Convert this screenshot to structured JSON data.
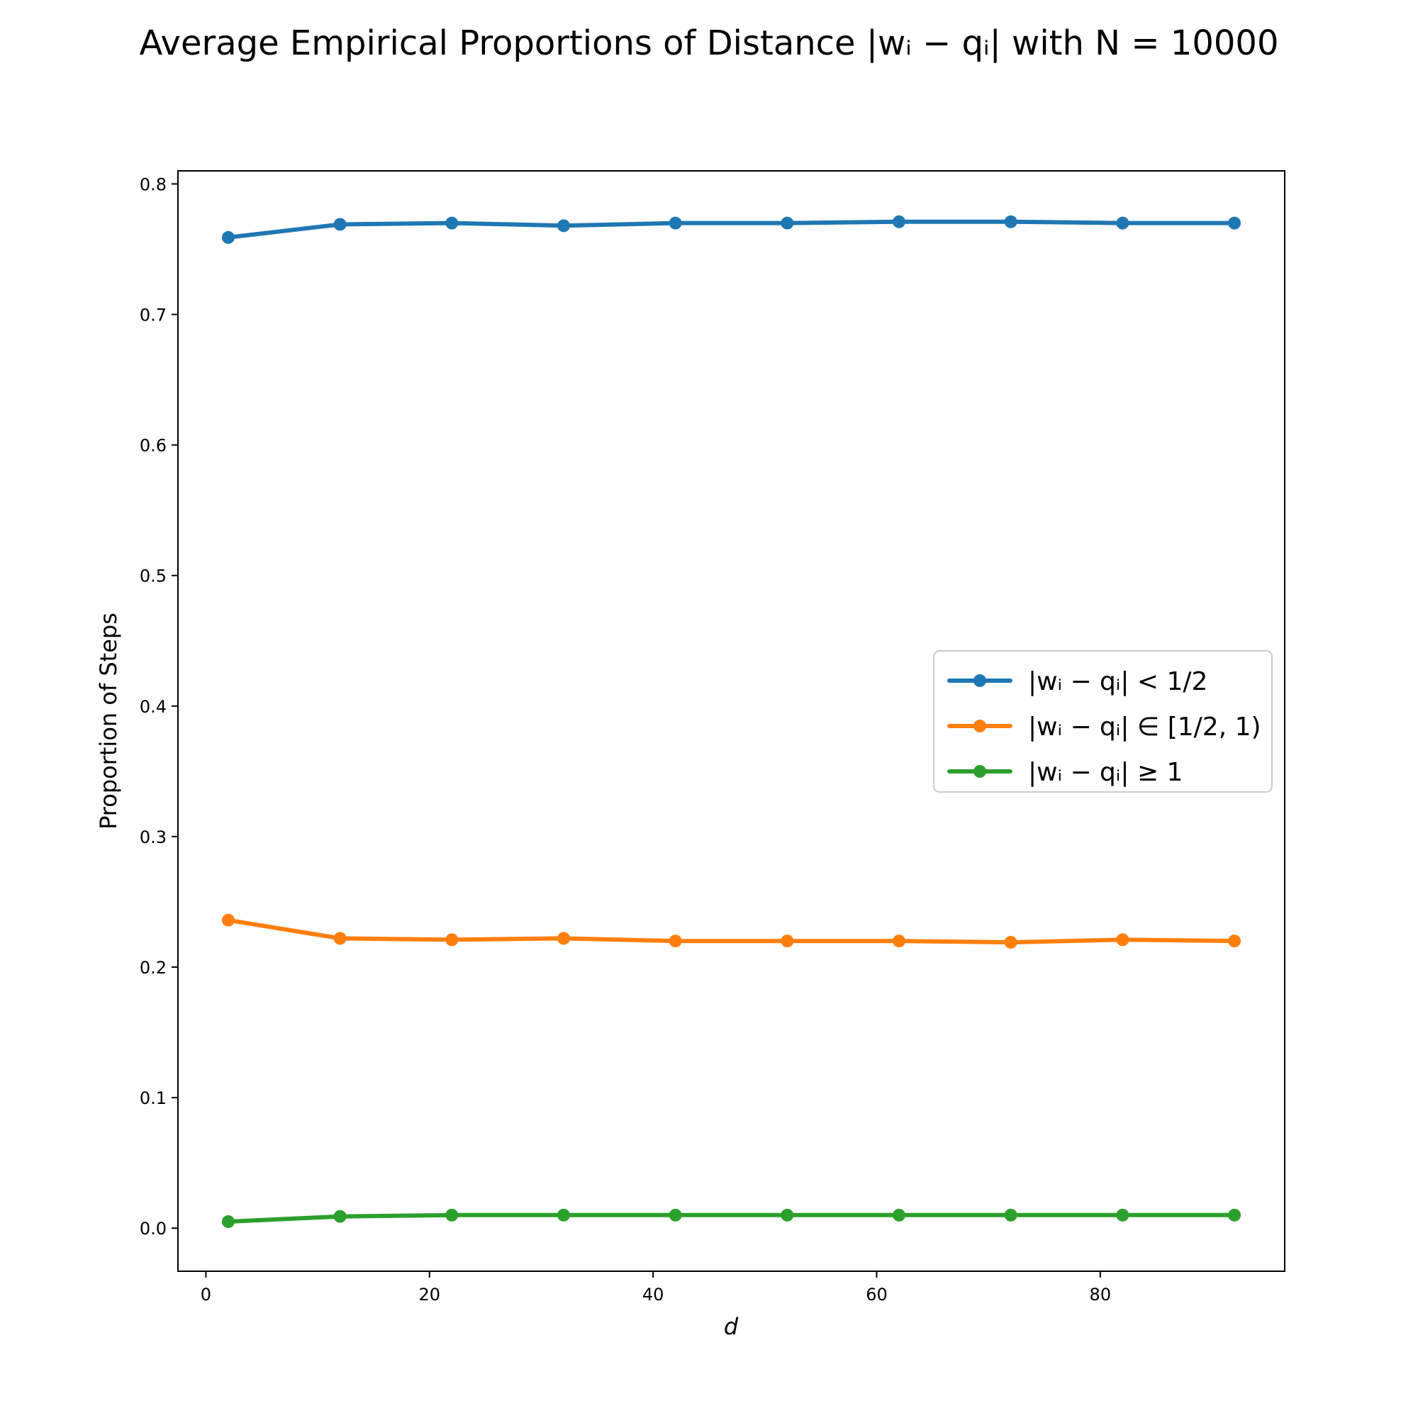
{
  "chart_data": {
    "type": "line",
    "title": "Average Empirical Proportions of Distance |wᵢ − qᵢ| with N = 10000",
    "xlabel": "d",
    "ylabel": "Proportion of Steps",
    "xlim": [
      -2.5,
      96.5
    ],
    "ylim": [
      -0.033,
      0.81
    ],
    "x_ticks": [
      0,
      20,
      40,
      60,
      80
    ],
    "y_ticks": [
      0.0,
      0.1,
      0.2,
      0.3,
      0.4,
      0.5,
      0.6,
      0.7,
      0.8
    ],
    "x_tick_labels": [
      "0",
      "20",
      "40",
      "60",
      "80"
    ],
    "y_tick_labels": [
      "0.0",
      "0.1",
      "0.2",
      "0.3",
      "0.4",
      "0.5",
      "0.6",
      "0.7",
      "0.8"
    ],
    "grid": false,
    "legend_position": "center-right",
    "x": [
      2,
      12,
      22,
      32,
      42,
      52,
      62,
      72,
      82,
      92
    ],
    "series": [
      {
        "name": "|wᵢ − qᵢ| < 1/2",
        "color": "#1f77b4",
        "values": [
          0.759,
          0.769,
          0.77,
          0.768,
          0.77,
          0.77,
          0.771,
          0.771,
          0.77,
          0.77
        ]
      },
      {
        "name": "|wᵢ − qᵢ| ∈ [1/2, 1)",
        "color": "#ff7f0e",
        "values": [
          0.236,
          0.222,
          0.221,
          0.222,
          0.22,
          0.22,
          0.22,
          0.219,
          0.221,
          0.22
        ]
      },
      {
        "name": "|wᵢ − qᵢ| ≥ 1",
        "color": "#2ca02c",
        "values": [
          0.005,
          0.009,
          0.01,
          0.01,
          0.01,
          0.01,
          0.01,
          0.01,
          0.01,
          0.01
        ]
      }
    ]
  }
}
